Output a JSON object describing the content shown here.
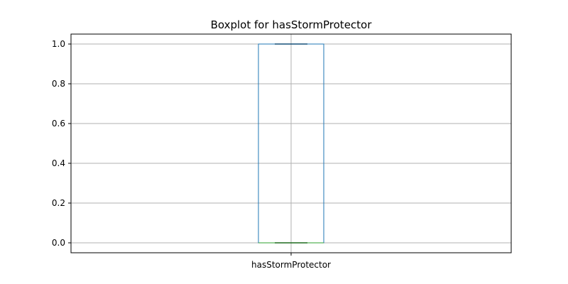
{
  "chart_data": {
    "type": "boxplot",
    "title": "Boxplot for hasStormProtector",
    "categories": [
      "hasStormProtector"
    ],
    "boxes": [
      {
        "name": "hasStormProtector",
        "whisker_low": 0.0,
        "q1": 0.0,
        "median": 0.0,
        "q3": 1.0,
        "whisker_high": 1.0,
        "outliers": []
      }
    ],
    "yticks": [
      0.0,
      0.2,
      0.4,
      0.6,
      0.8,
      1.0
    ],
    "ytick_labels": [
      "0.0",
      "0.2",
      "0.4",
      "0.6",
      "0.8",
      "1.0"
    ],
    "ylim": [
      -0.05,
      1.05
    ],
    "grid": true,
    "colors": {
      "box": "#1f77b4",
      "median": "#2ca02c",
      "whisker": "#000000",
      "grid": "#b0b0b0"
    }
  }
}
